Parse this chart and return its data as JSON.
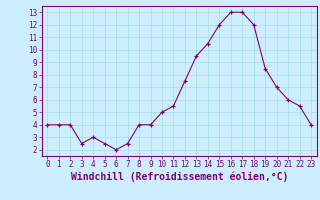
{
  "x": [
    0,
    1,
    2,
    3,
    4,
    5,
    6,
    7,
    8,
    9,
    10,
    11,
    12,
    13,
    14,
    15,
    16,
    17,
    18,
    19,
    20,
    21,
    22,
    23
  ],
  "y": [
    4,
    4,
    4,
    2.5,
    3,
    2.5,
    2,
    2.5,
    4,
    4,
    5,
    5.5,
    7.5,
    9.5,
    10.5,
    12,
    13,
    13,
    12,
    8.5,
    7,
    6,
    5.5,
    4
  ],
  "line_color": "#800080",
  "marker": "+",
  "marker_color": "#800080",
  "bg_color": "#cceeff",
  "grid_color": "#aadddd",
  "xlabel": "Windchill (Refroidissement éolien,°C)",
  "xlim": [
    -0.5,
    23.5
  ],
  "ylim": [
    1.5,
    13.5
  ],
  "yticks": [
    2,
    3,
    4,
    5,
    6,
    7,
    8,
    9,
    10,
    11,
    12,
    13
  ],
  "xticks": [
    0,
    1,
    2,
    3,
    4,
    5,
    6,
    7,
    8,
    9,
    10,
    11,
    12,
    13,
    14,
    15,
    16,
    17,
    18,
    19,
    20,
    21,
    22,
    23
  ],
  "tick_label_fontsize": 5.5,
  "xlabel_fontsize": 7.0,
  "tick_color": "#800080",
  "axis_color": "#800080",
  "line_width": 0.8,
  "marker_size": 3.5
}
